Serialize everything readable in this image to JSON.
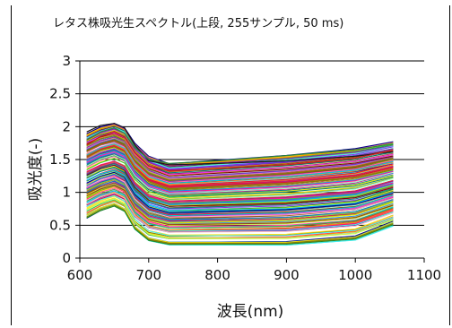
{
  "chart_data": {
    "type": "line",
    "title": "レタス株吸光生スペクトル(上段, 255サンプル, 50 ms)",
    "xlabel": "波長(nm)",
    "ylabel": "吸光度(-)",
    "xlim": [
      600,
      1100
    ],
    "ylim": [
      0,
      3
    ],
    "xticks": [
      "600",
      "700",
      "800",
      "900",
      "1000",
      "1100"
    ],
    "yticks": [
      "0",
      "0.5",
      "1",
      "1.5",
      "2",
      "2.5",
      "3"
    ],
    "grid": "horizontal",
    "legend": "none",
    "sample_count": 255,
    "x_range_data": [
      610,
      1055
    ],
    "profile": {
      "x": [
        610,
        630,
        650,
        665,
        680,
        700,
        730,
        800,
        900,
        1000,
        1055
      ],
      "shape_top": [
        1.88,
        1.98,
        2.03,
        1.96,
        1.72,
        1.52,
        1.4,
        1.45,
        1.52,
        1.62,
        1.72
      ],
      "shape_bottom": [
        0.62,
        0.73,
        0.8,
        0.72,
        0.45,
        0.28,
        0.22,
        0.22,
        0.22,
        0.3,
        0.52
      ]
    },
    "highlight_series": [
      {
        "name": "",
        "color": "#1a1a1a",
        "values": [
          1.92,
          2.02,
          2.05,
          1.98,
          1.72,
          1.48,
          1.42,
          1.44,
          1.48,
          1.55,
          1.62
        ]
      },
      {
        "name": "",
        "color": "#2e8b3a",
        "values": [
          1.8,
          1.92,
          1.98,
          1.9,
          1.68,
          1.5,
          1.44,
          1.48,
          1.56,
          1.65,
          1.74
        ]
      },
      {
        "name": "",
        "color": "#c81e1e",
        "values": [
          1.72,
          1.85,
          1.92,
          1.84,
          1.6,
          1.4,
          1.33,
          1.36,
          1.42,
          1.52,
          1.64
        ]
      }
    ],
    "palette": [
      "#e6194b",
      "#3cb44b",
      "#ffe119",
      "#0082c8",
      "#f58231",
      "#911eb4",
      "#46f0f0",
      "#f032e6",
      "#d2f53c",
      "#fabebe",
      "#008080",
      "#aa6e28",
      "#800000",
      "#aaffc3",
      "#808000",
      "#000080",
      "#ff69b4",
      "#1e90ff",
      "#32cd32",
      "#ff8c00",
      "#8a2be2",
      "#00ced1",
      "#dc143c",
      "#228b22",
      "#4169e1",
      "#ffd700",
      "#9acd32",
      "#ff1493",
      "#00bfff",
      "#8b4513"
    ]
  }
}
